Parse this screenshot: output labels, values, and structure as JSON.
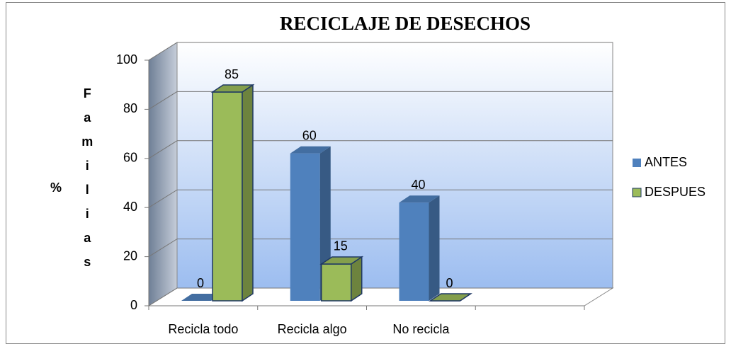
{
  "chart_data": {
    "type": "bar3d",
    "title": "RECICLAJE DE DESECHOS",
    "ylabel": [
      "%",
      "Familias"
    ],
    "categories": [
      "Recicla todo",
      "Recicla algo",
      "No recicla",
      null
    ],
    "series": [
      {
        "name": "ANTES",
        "color": "#4f81bd",
        "values": [
          0,
          60,
          40,
          null
        ]
      },
      {
        "name": "DESPUES",
        "color": "#9bbb59",
        "values": [
          85,
          15,
          0,
          null
        ]
      }
    ],
    "ylim": [
      0,
      100
    ],
    "yticks": [
      0,
      20,
      40,
      60,
      80,
      100
    ],
    "grid": true,
    "legend": "right"
  }
}
